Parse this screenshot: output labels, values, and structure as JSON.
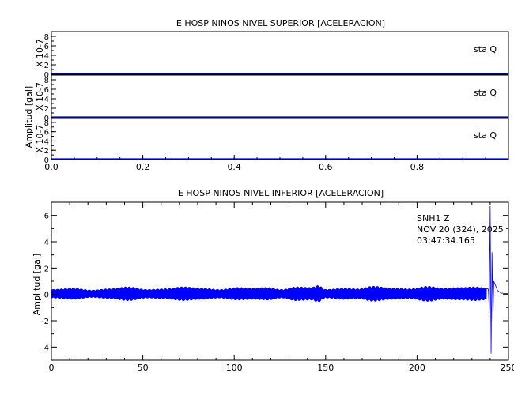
{
  "chart_data": [
    {
      "type": "line",
      "title": "E HOSP NINOS NIVEL SUPERIOR [ACELERACION]",
      "ylabel": "Amplitud [gal]",
      "xlim": [
        0,
        1
      ],
      "x_ticks": [
        "0.0",
        "0.2",
        "0.4",
        "0.6",
        "0.8"
      ],
      "x_tick_values": [
        0,
        0.2,
        0.4,
        0.6,
        0.8
      ],
      "panels": [
        {
          "label": "sta    Q",
          "scale_label": "X 10-7",
          "y_ticks": [
            "8",
            "6",
            "4",
            "2",
            "0"
          ],
          "y_tick_values": [
            8,
            6,
            4,
            2,
            0
          ],
          "ylim": [
            0,
            9
          ],
          "values": [
            0,
            0
          ]
        },
        {
          "label": "sta    Q",
          "scale_label": "X 10-7",
          "y_ticks": [
            "8",
            "6",
            "4",
            "2",
            "0"
          ],
          "y_tick_values": [
            8,
            6,
            4,
            2,
            0
          ],
          "ylim": [
            0,
            9
          ],
          "values": [
            0,
            0
          ]
        },
        {
          "label": "sta    Q",
          "scale_label": "X 10-7",
          "y_ticks": [
            "8",
            "6",
            "4",
            "2",
            "0"
          ],
          "y_tick_values": [
            8,
            6,
            4,
            2,
            0
          ],
          "ylim": [
            0,
            9
          ],
          "values": [
            0,
            0
          ]
        }
      ],
      "line_color": "#0000ff"
    },
    {
      "type": "line",
      "title": "E HOSP NINOS NIVEL INFERIOR [ACELERACION]",
      "ylabel": "Amplitud [gal]",
      "xlim": [
        0,
        250
      ],
      "ylim": [
        -5,
        7
      ],
      "x_ticks": [
        "0",
        "50",
        "100",
        "150",
        "200",
        "250"
      ],
      "x_tick_values": [
        0,
        50,
        100,
        150,
        200,
        250
      ],
      "y_ticks": [
        "6",
        "4",
        "2",
        "0",
        "-2",
        "-4"
      ],
      "y_tick_values": [
        6,
        4,
        2,
        0,
        -2,
        -4
      ],
      "annotations": [
        "SNH1    Z",
        "NOV 20 (324), 2025",
        "03:47:34.165"
      ],
      "line_color": "#0000ff",
      "series": [
        {
          "envelope": {
            "x": [
              0,
              12,
              22,
              32,
              42,
              52,
              62,
              72,
              82,
              92,
              102,
              110,
              118,
              126,
              134,
              142,
              146,
              150,
              160,
              168,
              176,
              186,
              196,
              206,
              214,
              224,
              232,
              236,
              238
            ],
            "amplitude": [
              0.35,
              0.45,
              0.3,
              0.4,
              0.55,
              0.35,
              0.4,
              0.55,
              0.45,
              0.35,
              0.5,
              0.45,
              0.5,
              0.35,
              0.55,
              0.5,
              0.65,
              0.35,
              0.45,
              0.4,
              0.6,
              0.45,
              0.4,
              0.6,
              0.45,
              0.5,
              0.55,
              0.5,
              0.45
            ]
          },
          "spike": {
            "x": [
              239,
              239.5,
              240,
              240.5,
              241,
              241.5,
              242,
              244,
              246,
              250
            ],
            "y": [
              0.4,
              -1.2,
              6.7,
              -4.5,
              3.2,
              -2.0,
              1.0,
              0.3,
              0.1,
              0.05
            ]
          }
        }
      ]
    }
  ]
}
